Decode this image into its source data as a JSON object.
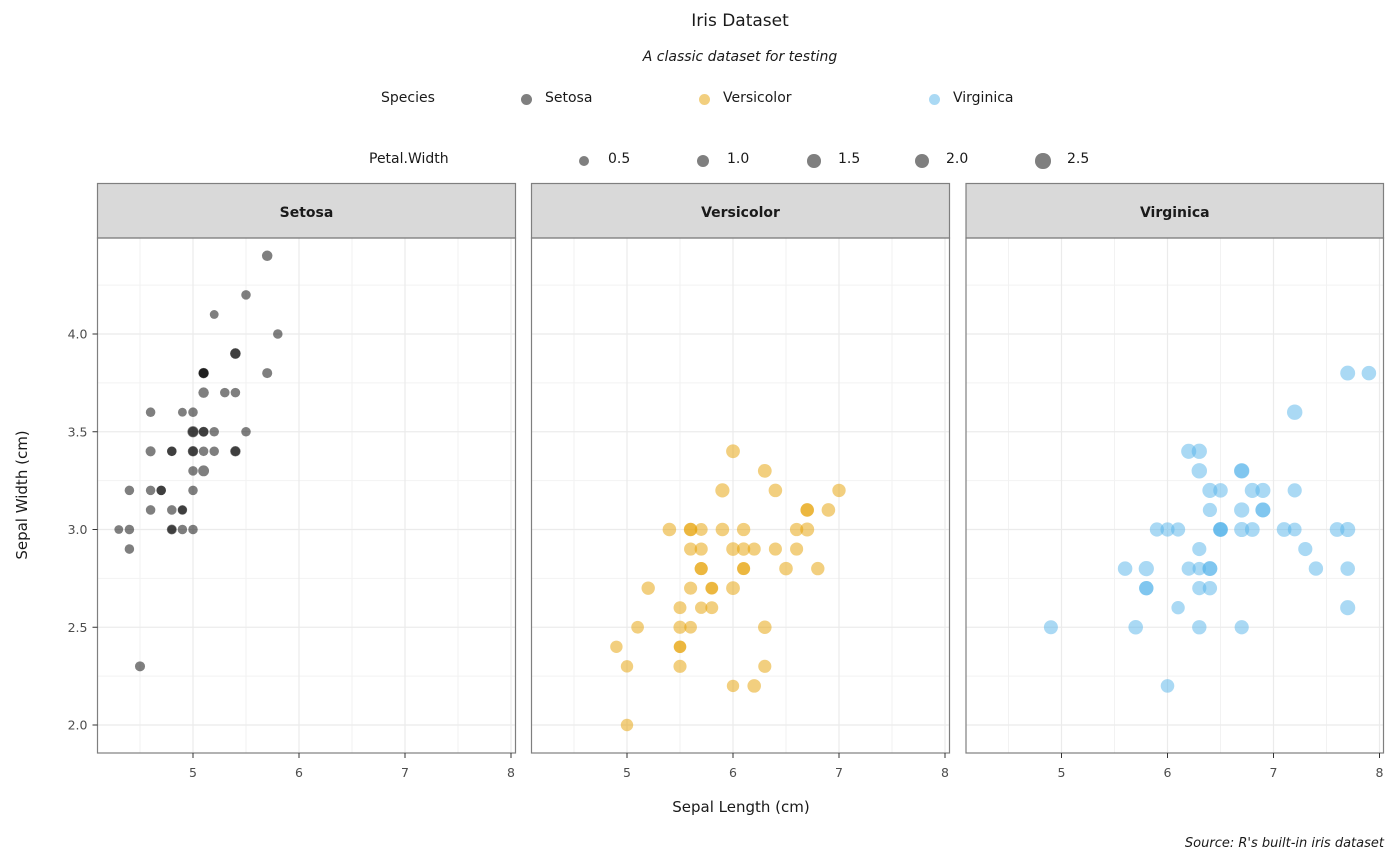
{
  "chart_data": {
    "type": "scatter",
    "title": "Iris Dataset",
    "subtitle": "A classic dataset for testing",
    "caption": "Source: R's built-in iris dataset",
    "xlabel": "Sepal Length (cm)",
    "ylabel": "Sepal Width (cm)",
    "xlim": [
      4.2,
      8.05
    ],
    "ylim": [
      1.86,
      4.5
    ],
    "x_ticks": [
      "5",
      "6",
      "7",
      "8"
    ],
    "y_ticks": [
      "2.0",
      "2.5",
      "3.0",
      "3.5",
      "4.0"
    ],
    "grid": true,
    "facet_by": "Species",
    "legend": {
      "position": "top",
      "color_title": "Species",
      "size_title": "Petal.Width",
      "size_breaks": [
        "0.5",
        "1.0",
        "1.5",
        "2.0",
        "2.5"
      ]
    },
    "series": [
      {
        "name": "Setosa",
        "color": "#000000",
        "points": [
          [
            5.1,
            3.5,
            0.2
          ],
          [
            4.9,
            3.0,
            0.2
          ],
          [
            4.7,
            3.2,
            0.2
          ],
          [
            4.6,
            3.1,
            0.2
          ],
          [
            5.0,
            3.6,
            0.2
          ],
          [
            5.4,
            3.9,
            0.4
          ],
          [
            4.6,
            3.4,
            0.3
          ],
          [
            5.0,
            3.4,
            0.2
          ],
          [
            4.4,
            2.9,
            0.2
          ],
          [
            4.9,
            3.1,
            0.1
          ],
          [
            5.4,
            3.7,
            0.2
          ],
          [
            4.8,
            3.4,
            0.2
          ],
          [
            4.8,
            3.0,
            0.1
          ],
          [
            4.3,
            3.0,
            0.1
          ],
          [
            5.8,
            4.0,
            0.2
          ],
          [
            5.7,
            4.4,
            0.4
          ],
          [
            5.4,
            3.9,
            0.4
          ],
          [
            5.1,
            3.5,
            0.3
          ],
          [
            5.7,
            3.8,
            0.3
          ],
          [
            5.1,
            3.8,
            0.3
          ],
          [
            5.4,
            3.4,
            0.2
          ],
          [
            5.1,
            3.7,
            0.4
          ],
          [
            4.6,
            3.6,
            0.2
          ],
          [
            5.1,
            3.3,
            0.5
          ],
          [
            4.8,
            3.4,
            0.2
          ],
          [
            5.0,
            3.0,
            0.2
          ],
          [
            5.0,
            3.4,
            0.4
          ],
          [
            5.2,
            3.5,
            0.2
          ],
          [
            5.2,
            3.4,
            0.2
          ],
          [
            4.7,
            3.2,
            0.2
          ],
          [
            4.8,
            3.1,
            0.2
          ],
          [
            5.4,
            3.4,
            0.4
          ],
          [
            5.2,
            4.1,
            0.1
          ],
          [
            5.5,
            4.2,
            0.2
          ],
          [
            4.9,
            3.1,
            0.2
          ],
          [
            5.0,
            3.2,
            0.2
          ],
          [
            5.5,
            3.5,
            0.2
          ],
          [
            4.9,
            3.6,
            0.1
          ],
          [
            4.4,
            3.0,
            0.2
          ],
          [
            5.1,
            3.4,
            0.2
          ],
          [
            5.0,
            3.5,
            0.3
          ],
          [
            4.5,
            2.3,
            0.3
          ],
          [
            4.4,
            3.2,
            0.2
          ],
          [
            5.0,
            3.5,
            0.6
          ],
          [
            5.1,
            3.8,
            0.4
          ],
          [
            4.8,
            3.0,
            0.3
          ],
          [
            5.1,
            3.8,
            0.2
          ],
          [
            4.6,
            3.2,
            0.2
          ],
          [
            5.3,
            3.7,
            0.2
          ],
          [
            5.0,
            3.3,
            0.2
          ]
        ]
      },
      {
        "name": "Versicolor",
        "color": "#E69F00",
        "points": [
          [
            7.0,
            3.2,
            1.4
          ],
          [
            6.4,
            3.2,
            1.5
          ],
          [
            6.9,
            3.1,
            1.5
          ],
          [
            5.5,
            2.3,
            1.3
          ],
          [
            6.5,
            2.8,
            1.5
          ],
          [
            5.7,
            2.8,
            1.3
          ],
          [
            6.3,
            3.3,
            1.6
          ],
          [
            4.9,
            2.4,
            1.0
          ],
          [
            6.6,
            2.9,
            1.3
          ],
          [
            5.2,
            2.7,
            1.4
          ],
          [
            5.0,
            2.0,
            1.0
          ],
          [
            5.9,
            3.0,
            1.5
          ],
          [
            6.0,
            2.2,
            1.0
          ],
          [
            6.1,
            2.9,
            1.4
          ],
          [
            5.6,
            2.9,
            1.3
          ],
          [
            6.7,
            3.1,
            1.4
          ],
          [
            5.6,
            3.0,
            1.5
          ],
          [
            5.8,
            2.7,
            1.0
          ],
          [
            6.2,
            2.2,
            1.5
          ],
          [
            5.6,
            2.5,
            1.1
          ],
          [
            5.9,
            3.2,
            1.8
          ],
          [
            6.1,
            2.8,
            1.3
          ],
          [
            6.3,
            2.5,
            1.5
          ],
          [
            6.1,
            2.8,
            1.2
          ],
          [
            6.4,
            2.9,
            1.3
          ],
          [
            6.6,
            3.0,
            1.4
          ],
          [
            6.8,
            2.8,
            1.4
          ],
          [
            6.7,
            3.0,
            1.7
          ],
          [
            6.0,
            2.9,
            1.5
          ],
          [
            5.7,
            2.6,
            1.0
          ],
          [
            5.5,
            2.4,
            1.1
          ],
          [
            5.5,
            2.4,
            1.0
          ],
          [
            5.8,
            2.7,
            1.2
          ],
          [
            6.0,
            2.7,
            1.6
          ],
          [
            5.4,
            3.0,
            1.5
          ],
          [
            6.0,
            3.4,
            1.6
          ],
          [
            6.7,
            3.1,
            1.5
          ],
          [
            6.3,
            2.3,
            1.3
          ],
          [
            5.6,
            3.0,
            1.3
          ],
          [
            5.5,
            2.5,
            1.3
          ],
          [
            5.5,
            2.6,
            1.2
          ],
          [
            6.1,
            3.0,
            1.4
          ],
          [
            5.8,
            2.6,
            1.2
          ],
          [
            5.0,
            2.3,
            1.0
          ],
          [
            5.6,
            2.7,
            1.3
          ],
          [
            5.7,
            3.0,
            1.2
          ],
          [
            5.7,
            2.9,
            1.3
          ],
          [
            6.2,
            2.9,
            1.3
          ],
          [
            5.1,
            2.5,
            1.1
          ],
          [
            5.7,
            2.8,
            1.3
          ]
        ]
      },
      {
        "name": "Virginica",
        "color": "#56B4E9",
        "points": [
          [
            6.3,
            3.3,
            2.5
          ],
          [
            5.8,
            2.7,
            1.9
          ],
          [
            7.1,
            3.0,
            2.1
          ],
          [
            6.3,
            2.9,
            1.8
          ],
          [
            6.5,
            3.0,
            2.2
          ],
          [
            7.6,
            3.0,
            2.1
          ],
          [
            4.9,
            2.5,
            1.7
          ],
          [
            7.3,
            2.9,
            1.8
          ],
          [
            6.7,
            2.5,
            1.8
          ],
          [
            7.2,
            3.6,
            2.5
          ],
          [
            6.5,
            3.2,
            2.0
          ],
          [
            6.4,
            2.7,
            1.9
          ],
          [
            6.8,
            3.0,
            2.1
          ],
          [
            5.7,
            2.5,
            2.0
          ],
          [
            5.8,
            2.8,
            2.4
          ],
          [
            6.4,
            3.2,
            2.3
          ],
          [
            6.5,
            3.0,
            1.8
          ],
          [
            7.7,
            3.8,
            2.2
          ],
          [
            7.7,
            2.6,
            2.3
          ],
          [
            6.0,
            2.2,
            1.5
          ],
          [
            6.9,
            3.2,
            2.3
          ],
          [
            5.6,
            2.8,
            2.0
          ],
          [
            7.7,
            2.8,
            2.0
          ],
          [
            6.3,
            2.7,
            1.8
          ],
          [
            6.7,
            3.3,
            2.1
          ],
          [
            7.2,
            3.2,
            1.8
          ],
          [
            6.2,
            2.8,
            1.8
          ],
          [
            6.1,
            3.0,
            1.8
          ],
          [
            6.4,
            2.8,
            2.1
          ],
          [
            7.2,
            3.0,
            1.6
          ],
          [
            7.4,
            2.8,
            1.9
          ],
          [
            7.9,
            3.8,
            2.0
          ],
          [
            6.4,
            2.8,
            2.2
          ],
          [
            6.3,
            2.8,
            1.5
          ],
          [
            6.1,
            2.6,
            1.4
          ],
          [
            7.7,
            3.0,
            2.3
          ],
          [
            6.3,
            3.4,
            2.4
          ],
          [
            6.4,
            3.1,
            1.8
          ],
          [
            6.0,
            3.0,
            1.8
          ],
          [
            6.9,
            3.1,
            2.1
          ],
          [
            6.7,
            3.1,
            2.4
          ],
          [
            6.9,
            3.1,
            2.3
          ],
          [
            5.8,
            2.7,
            1.9
          ],
          [
            6.8,
            3.2,
            2.3
          ],
          [
            6.7,
            3.3,
            2.5
          ],
          [
            6.7,
            3.0,
            2.3
          ],
          [
            6.3,
            2.5,
            1.9
          ],
          [
            6.5,
            3.0,
            2.0
          ],
          [
            6.2,
            3.4,
            2.3
          ],
          [
            5.9,
            3.0,
            1.8
          ]
        ]
      }
    ]
  }
}
